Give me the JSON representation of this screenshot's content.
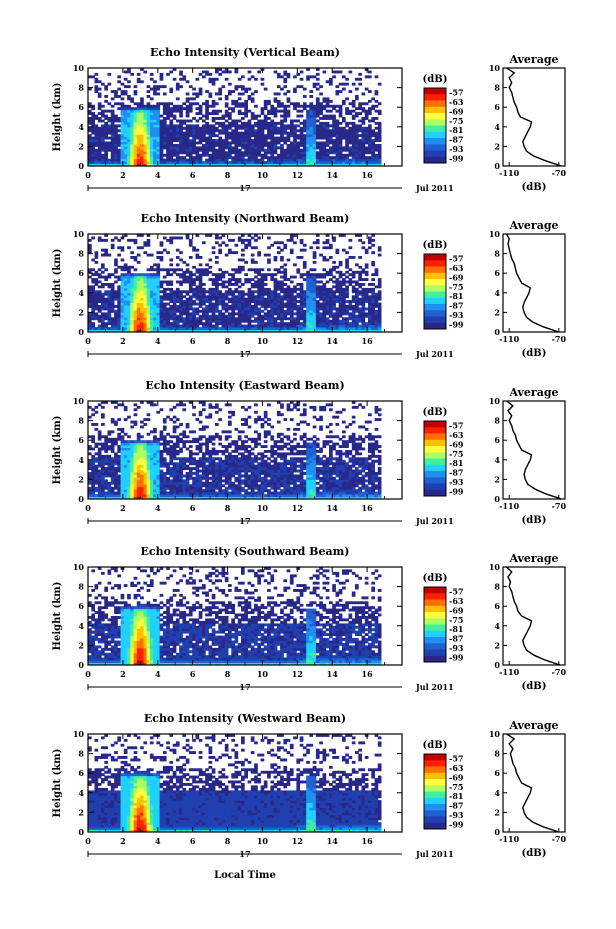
{
  "figure": {
    "xlabel_bottom": "Local Time",
    "date_day": "17",
    "date_month": "Jul 2011"
  },
  "colorbar": {
    "unit": "(dB)",
    "ticks": [
      "-57",
      "-63",
      "-69",
      "-75",
      "-81",
      "-87",
      "-93",
      "-99"
    ],
    "colors": [
      "#c00000",
      "#ff2000",
      "#ff7000",
      "#ffc000",
      "#ffff40",
      "#b0ff60",
      "#40f0a0",
      "#20d0ff",
      "#2090f0",
      "#2060d0",
      "#2040b0",
      "#28288a"
    ]
  },
  "chart_data": [
    {
      "type": "heatmap",
      "title": "Echo Intensity (Vertical Beam)",
      "xlabel": "",
      "ylabel": "Height (km)",
      "x_ticks": [
        "0",
        "2",
        "4",
        "6",
        "8",
        "10",
        "12",
        "14",
        "16"
      ],
      "y_ticks": [
        "0",
        "2",
        "4",
        "6",
        "8",
        "10"
      ],
      "xlim": [
        0,
        18
      ],
      "ylim": [
        0,
        10
      ],
      "zlim": [
        -99,
        -57
      ],
      "profile": {
        "title": "Average",
        "xlabel": "(dB)",
        "x_ticks": [
          "-110",
          "-70"
        ],
        "y_ticks": [
          "0",
          "2",
          "4",
          "6",
          "8",
          "10"
        ],
        "xlim": [
          -115,
          -65
        ],
        "height": [
          0,
          0.5,
          1,
          1.5,
          2,
          2.5,
          3,
          3.5,
          4,
          4.5,
          5,
          5.5,
          6,
          6.5,
          7,
          7.5,
          8,
          8.5,
          9,
          9.5,
          10
        ],
        "db": [
          -68,
          -80,
          -90,
          -96,
          -98,
          -99,
          -97,
          -95,
          -93,
          -92,
          -101,
          -103,
          -104,
          -106,
          -107,
          -108,
          -110,
          -108,
          -110,
          -106,
          -112
        ]
      }
    },
    {
      "type": "heatmap",
      "title": "Echo Intensity (Northward Beam)",
      "xlabel": "",
      "ylabel": "Height (km)",
      "x_ticks": [
        "0",
        "2",
        "4",
        "6",
        "8",
        "10",
        "12",
        "14",
        "16"
      ],
      "y_ticks": [
        "0",
        "2",
        "4",
        "6",
        "8",
        "10"
      ],
      "xlim": [
        0,
        18
      ],
      "ylim": [
        0,
        10
      ],
      "zlim": [
        -99,
        -57
      ],
      "profile": {
        "title": "Average",
        "xlabel": "(dB)",
        "x_ticks": [
          "-110",
          "-70"
        ],
        "y_ticks": [
          "0",
          "2",
          "4",
          "6",
          "8",
          "10"
        ],
        "xlim": [
          -115,
          -65
        ],
        "height": [
          0,
          0.5,
          1,
          1.5,
          2,
          2.5,
          3,
          3.5,
          4,
          4.5,
          5,
          5.5,
          6,
          6.5,
          7,
          7.5,
          8,
          8.5,
          9,
          9.5,
          10
        ],
        "db": [
          -70,
          -82,
          -91,
          -96,
          -98,
          -99,
          -98,
          -96,
          -94,
          -93,
          -100,
          -102,
          -104,
          -105,
          -106,
          -108,
          -109,
          -110,
          -111,
          -110,
          -112
        ]
      }
    },
    {
      "type": "heatmap",
      "title": "Echo Intensity (Eastward Beam)",
      "xlabel": "",
      "ylabel": "Height (km)",
      "x_ticks": [
        "0",
        "2",
        "4",
        "6",
        "8",
        "10",
        "12",
        "14",
        "16"
      ],
      "y_ticks": [
        "0",
        "2",
        "4",
        "6",
        "8",
        "10"
      ],
      "xlim": [
        0,
        18
      ],
      "ylim": [
        0,
        10
      ],
      "zlim": [
        -99,
        -57
      ],
      "profile": {
        "title": "Average",
        "xlabel": "(dB)",
        "x_ticks": [
          "-110",
          "-70"
        ],
        "y_ticks": [
          "0",
          "2",
          "4",
          "6",
          "8",
          "10"
        ],
        "xlim": [
          -115,
          -65
        ],
        "height": [
          0,
          0.5,
          1,
          1.5,
          2,
          2.5,
          3,
          3.5,
          4,
          4.5,
          5,
          5.5,
          6,
          6.5,
          7,
          7.5,
          8,
          8.5,
          9,
          9.5,
          10
        ],
        "db": [
          -68,
          -80,
          -89,
          -95,
          -97,
          -98,
          -97,
          -95,
          -93,
          -92,
          -100,
          -102,
          -104,
          -105,
          -107,
          -108,
          -110,
          -108,
          -111,
          -107,
          -112
        ]
      }
    },
    {
      "type": "heatmap",
      "title": "Echo Intensity (Southward Beam)",
      "xlabel": "",
      "ylabel": "Height (km)",
      "x_ticks": [
        "0",
        "2",
        "4",
        "6",
        "8",
        "10",
        "12",
        "14",
        "16"
      ],
      "y_ticks": [
        "0",
        "2",
        "4",
        "6",
        "8",
        "10"
      ],
      "xlim": [
        0,
        18
      ],
      "ylim": [
        0,
        10
      ],
      "zlim": [
        -99,
        -57
      ],
      "profile": {
        "title": "Average",
        "xlabel": "(dB)",
        "x_ticks": [
          "-110",
          "-70"
        ],
        "y_ticks": [
          "0",
          "2",
          "4",
          "6",
          "8",
          "10"
        ],
        "xlim": [
          -115,
          -65
        ],
        "height": [
          0,
          0.5,
          1,
          1.5,
          2,
          2.5,
          3,
          3.5,
          4,
          4.5,
          5,
          5.5,
          6,
          6.5,
          7,
          7.5,
          8,
          8.5,
          9,
          9.5,
          10
        ],
        "db": [
          -69,
          -81,
          -90,
          -96,
          -98,
          -99,
          -97,
          -95,
          -93,
          -92,
          -100,
          -103,
          -104,
          -106,
          -107,
          -108,
          -110,
          -109,
          -111,
          -108,
          -112
        ]
      }
    },
    {
      "type": "heatmap",
      "title": "Echo Intensity (Westward Beam)",
      "xlabel": "",
      "ylabel": "Height (km)",
      "x_ticks": [
        "0",
        "2",
        "4",
        "6",
        "8",
        "10",
        "12",
        "14",
        "16"
      ],
      "y_ticks": [
        "0",
        "2",
        "4",
        "6",
        "8",
        "10"
      ],
      "xlim": [
        0,
        18
      ],
      "ylim": [
        0,
        10
      ],
      "zlim": [
        -99,
        -57
      ],
      "profile": {
        "title": "Average",
        "xlabel": "(dB)",
        "x_ticks": [
          "-110",
          "-70"
        ],
        "y_ticks": [
          "0",
          "2",
          "4",
          "6",
          "8",
          "10"
        ],
        "xlim": [
          -115,
          -65
        ],
        "height": [
          0,
          0.5,
          1,
          1.5,
          2,
          2.5,
          3,
          3.5,
          4,
          4.5,
          5,
          5.5,
          6,
          6.5,
          7,
          7.5,
          8,
          8.5,
          9,
          9.5,
          10
        ],
        "db": [
          -70,
          -82,
          -91,
          -96,
          -98,
          -99,
          -97,
          -95,
          -93,
          -92,
          -100,
          -102,
          -104,
          -105,
          -107,
          -108,
          -109,
          -107,
          -110,
          -106,
          -112
        ]
      }
    }
  ]
}
